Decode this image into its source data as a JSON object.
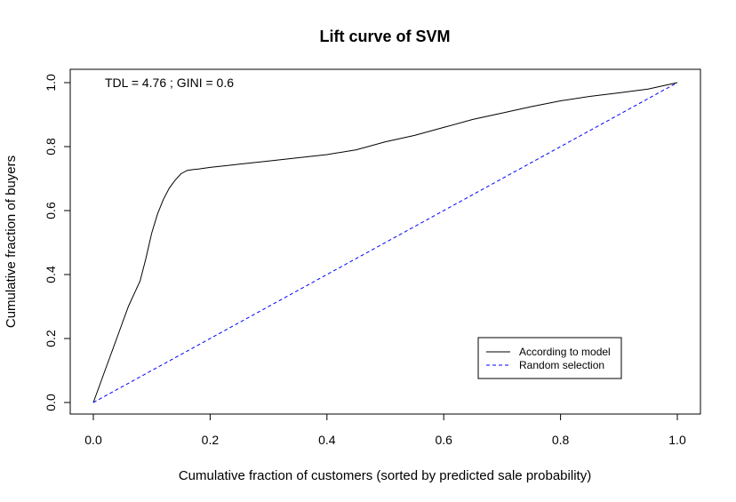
{
  "chart_data": {
    "type": "line",
    "title": "Lift curve of SVM",
    "xlabel": "Cumulative fraction of customers (sorted by predicted sale probability)",
    "ylabel": "Cumulative fraction of buyers",
    "xlim": [
      0,
      1
    ],
    "ylim": [
      0,
      1
    ],
    "x_ticks": [
      0,
      0.2,
      0.4,
      0.6,
      0.8,
      1
    ],
    "x_tick_labels": [
      "0.0",
      "0.2",
      "0.4",
      "0.6",
      "0.8",
      "1.0"
    ],
    "y_ticks": [
      0,
      0.2,
      0.4,
      0.6,
      0.8,
      1
    ],
    "y_tick_labels": [
      "0.0",
      "0.2",
      "0.4",
      "0.6",
      "0.8",
      "1.0"
    ],
    "annotation": "TDL =  4.76 ; GINI =  0.6",
    "grid": false,
    "legend_position": "bottom-right",
    "series": [
      {
        "name": "According to model",
        "color": "#000000",
        "dash": "solid",
        "x": [
          0,
          0.01,
          0.02,
          0.03,
          0.04,
          0.05,
          0.06,
          0.07,
          0.08,
          0.09,
          0.1,
          0.11,
          0.12,
          0.13,
          0.14,
          0.15,
          0.16,
          0.17,
          0.18,
          0.2,
          0.25,
          0.3,
          0.35,
          0.4,
          0.45,
          0.5,
          0.55,
          0.6,
          0.65,
          0.7,
          0.75,
          0.8,
          0.85,
          0.9,
          0.95,
          1.0
        ],
        "y": [
          0,
          0.05,
          0.1,
          0.15,
          0.2,
          0.25,
          0.3,
          0.34,
          0.38,
          0.45,
          0.53,
          0.59,
          0.635,
          0.67,
          0.695,
          0.715,
          0.725,
          0.728,
          0.73,
          0.735,
          0.745,
          0.755,
          0.765,
          0.775,
          0.79,
          0.815,
          0.835,
          0.86,
          0.885,
          0.905,
          0.925,
          0.943,
          0.957,
          0.968,
          0.98,
          1.0
        ]
      },
      {
        "name": "Random selection",
        "color": "#0000ff",
        "dash": "dashed",
        "x": [
          0,
          1
        ],
        "y": [
          0,
          1
        ]
      }
    ]
  }
}
